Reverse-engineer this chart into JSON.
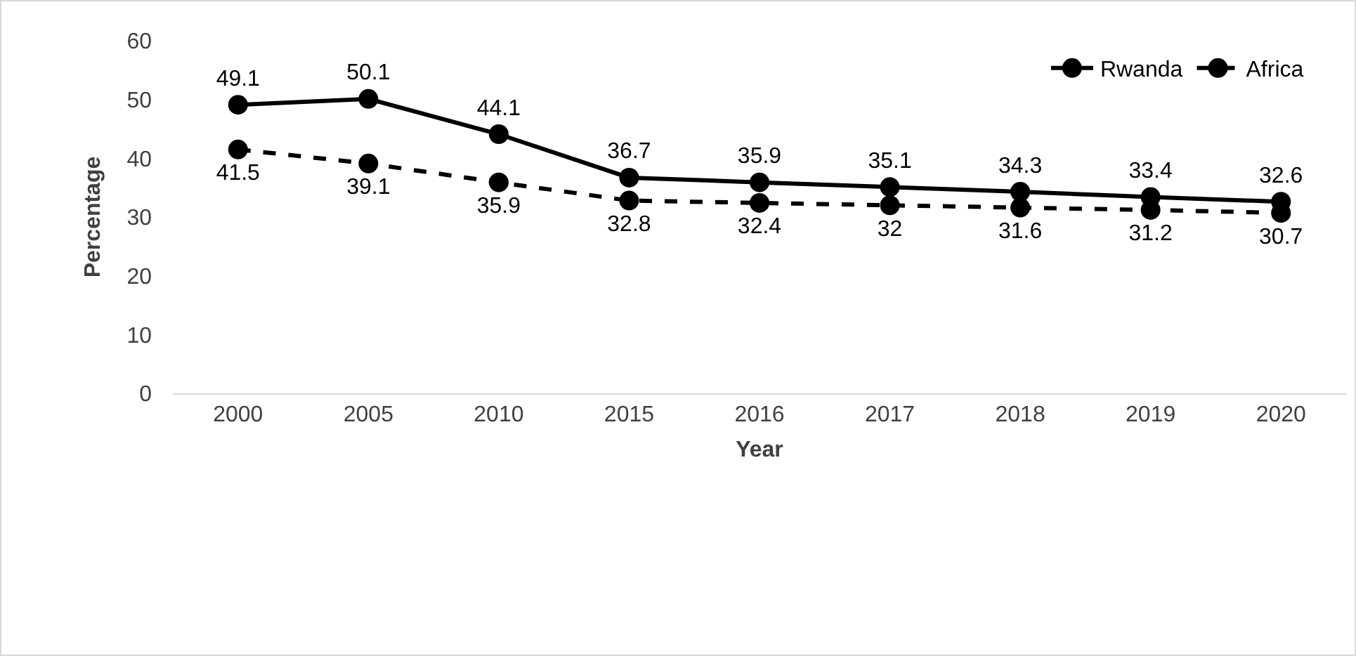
{
  "chart_data": {
    "type": "line",
    "xlabel": "Year",
    "ylabel": "Percentage",
    "categories": [
      "2000",
      "2005",
      "2010",
      "2015",
      "2016",
      "2017",
      "2018",
      "2019",
      "2020"
    ],
    "series": [
      {
        "name": "Rwanda",
        "color": "#000000",
        "line_style": "solid",
        "values": [
          49.1,
          50.1,
          44.1,
          36.7,
          35.9,
          35.1,
          34.3,
          33.4,
          32.6
        ]
      },
      {
        "name": "Africa",
        "color": "#000000",
        "line_style": "dashed",
        "values": [
          41.5,
          39.1,
          35.9,
          32.8,
          32.4,
          32,
          31.6,
          31.2,
          30.7
        ]
      }
    ],
    "ylim": [
      0,
      60
    ],
    "yticks": [
      0,
      10,
      20,
      30,
      40,
      50,
      60
    ],
    "grid": false,
    "legend": "top right",
    "marker": "circle",
    "data_labels": true
  }
}
